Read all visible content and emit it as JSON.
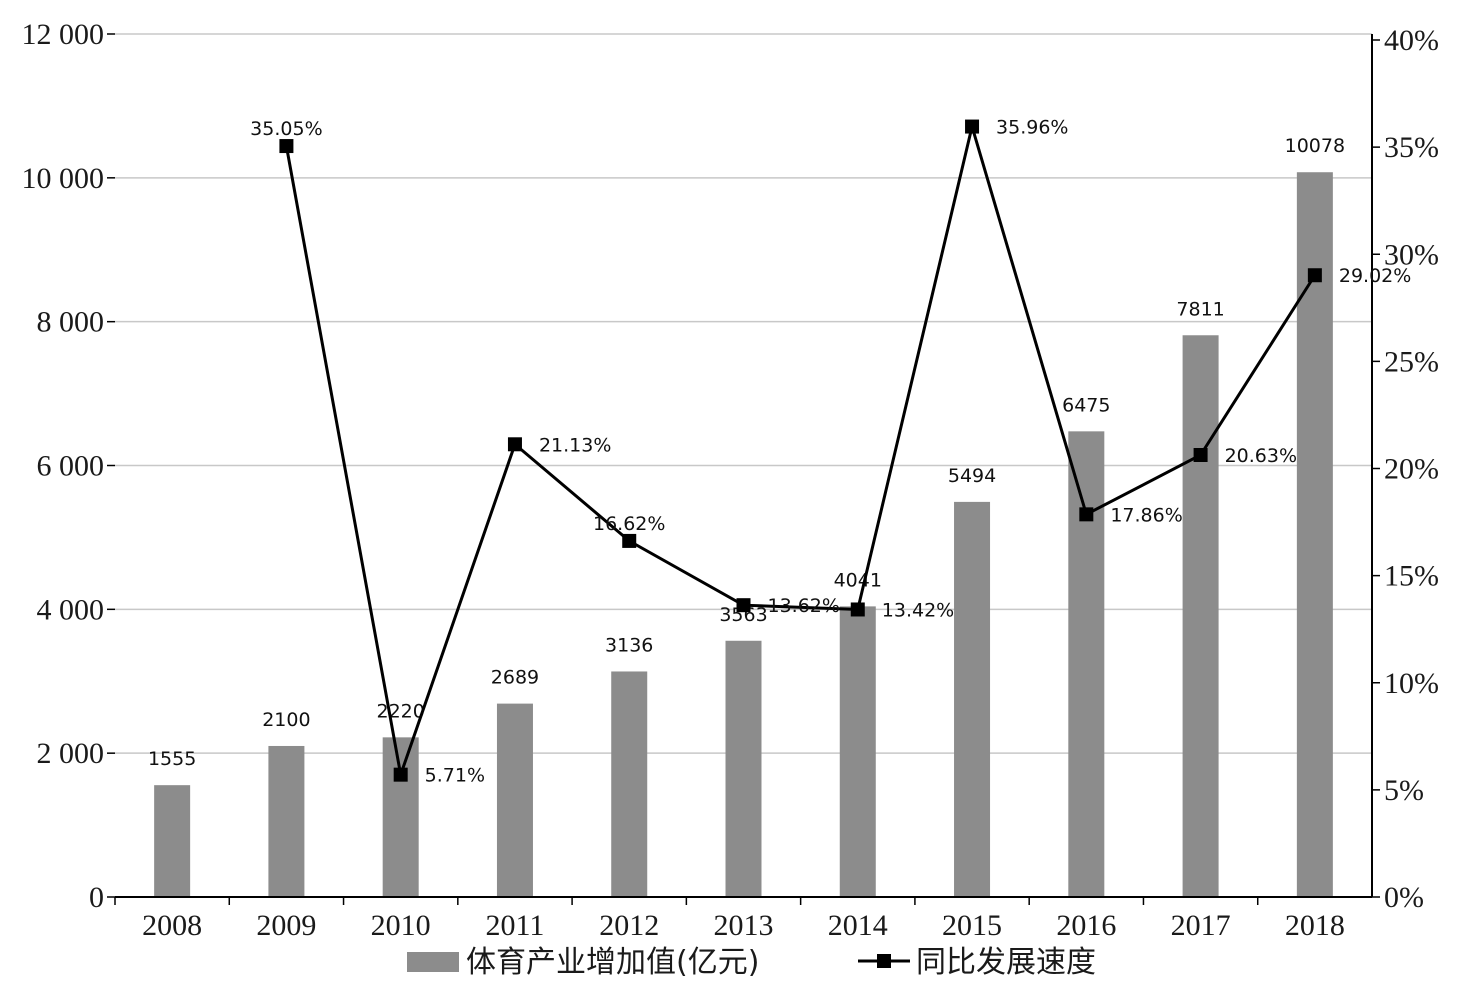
{
  "chart_data": {
    "type": "bar",
    "categories": [
      "2008",
      "2009",
      "2010",
      "2011",
      "2012",
      "2013",
      "2014",
      "2015",
      "2016",
      "2017",
      "2018"
    ],
    "series": [
      {
        "name": "体育产业增加值(亿元)",
        "kind": "bar",
        "axis": "left",
        "values": [
          1555,
          2100,
          2220,
          2689,
          3136,
          3563,
          4041,
          5494,
          6475,
          7811,
          10078
        ],
        "labels": [
          "1555",
          "2100",
          "2220",
          "2689",
          "3136",
          "3563",
          "4041",
          "5494",
          "6475",
          "7811",
          "10078"
        ]
      },
      {
        "name": "同比发展速度",
        "kind": "line",
        "axis": "right",
        "values": [
          null,
          35.05,
          5.71,
          21.13,
          16.62,
          13.62,
          13.42,
          35.96,
          17.86,
          20.63,
          29.02
        ],
        "labels": [
          "",
          "35.05%",
          "5.71%",
          "21.13%",
          "16.62%",
          "13.62%",
          "13.42%",
          "35.96%",
          "17.86%",
          "20.63%",
          "29.02%"
        ]
      }
    ],
    "y_left": {
      "ylim": [
        0,
        12000
      ],
      "ticks": [
        0,
        2000,
        4000,
        6000,
        8000,
        10000,
        12000
      ],
      "tick_labels": [
        "0",
        "2 000",
        "4 000",
        "6 000",
        "8 000",
        "10 000",
        "12 000"
      ]
    },
    "y_right": {
      "ylim": [
        0,
        40
      ],
      "ticks": [
        0,
        5,
        10,
        15,
        20,
        25,
        30,
        35,
        40
      ],
      "tick_labels": [
        "0%",
        "5%",
        "10%",
        "15%",
        "20%",
        "25%",
        "30%",
        "35%",
        "40%"
      ]
    },
    "grid": true,
    "legend": "bottom",
    "colors": {
      "bar": "#8c8c8c",
      "line": "#000000",
      "grid": "#c8c8c8",
      "axis": "#000000"
    }
  }
}
